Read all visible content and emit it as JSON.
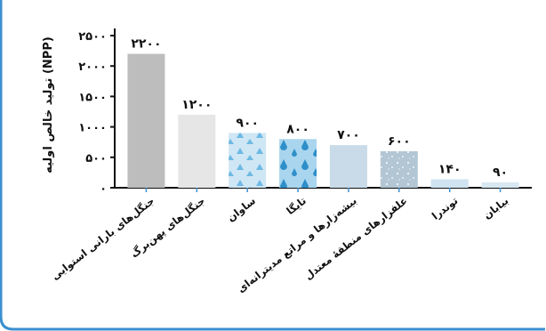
{
  "chart_data": {
    "type": "bar",
    "ylabel": "تولید خالص اولیه (NPP)",
    "categories": [
      "جنگل‌های بارانی استوایی",
      "جنگل‌های پهن‌برگ",
      "ساوان",
      "تایگا",
      "بیشه‌زارها و مراتع مدیترانه‌ای",
      "علفزارهای منطقهٔ معتدل",
      "توندرا",
      "بیابان"
    ],
    "values": [
      2200,
      1200,
      900,
      800,
      700,
      600,
      140,
      90
    ],
    "value_labels": [
      "۲۲۰۰",
      "۱۲۰۰",
      "۹۰۰",
      "۸۰۰",
      "۷۰۰",
      "۶۰۰",
      "۱۴۰",
      "۹۰"
    ],
    "yticks": [
      0,
      500,
      1000,
      1500,
      2000,
      2500
    ],
    "ytick_labels": [
      "۰",
      "۵۰۰",
      "۱۰۰۰",
      "۱۵۰۰",
      "۲۰۰۰",
      "۲۵۰۰"
    ],
    "ylim": [
      0,
      2500
    ],
    "grid": false,
    "legend": "none",
    "colors": [
      "#bdbdbd",
      "#e6e6e6",
      "#cfe6f4",
      "#a9d6ee",
      "#c9dbe8",
      "#b3c6d3",
      "#cfe3f0",
      "#d8e8f2"
    ],
    "patterns": [
      "none",
      "none",
      "triangles",
      "droplets",
      "none",
      "speckle",
      "none",
      "none"
    ],
    "frame_color": "#3b8fd0"
  }
}
